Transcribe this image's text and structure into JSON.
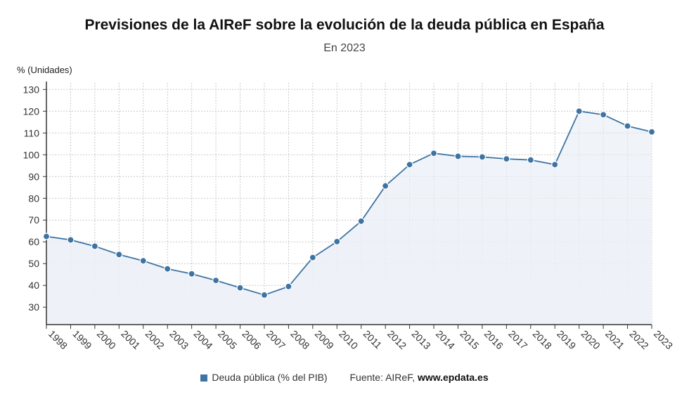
{
  "chart_data": {
    "type": "area",
    "title": "Previsiones de la AIReF sobre la evolución de la deuda pública en España",
    "subtitle": "En 2023",
    "ylabel": "% (Unidades)",
    "xlabel": "",
    "x": [
      "1998",
      "1999",
      "2000",
      "2001",
      "2002",
      "2003",
      "2004",
      "2005",
      "2006",
      "2007",
      "2008",
      "2009",
      "2010",
      "2011",
      "2012",
      "2013",
      "2014",
      "2015",
      "2016",
      "2017",
      "2018",
      "2019",
      "2020",
      "2021",
      "2022",
      "2023"
    ],
    "series": [
      {
        "name": "Deuda pública (% del PIB)",
        "values": [
          62.5,
          60.9,
          58.0,
          54.2,
          51.3,
          47.6,
          45.3,
          42.3,
          38.9,
          35.6,
          39.5,
          52.8,
          60.1,
          69.5,
          85.7,
          95.5,
          100.7,
          99.3,
          99.0,
          98.1,
          97.6,
          95.5,
          120.0,
          118.4,
          113.2,
          110.5
        ]
      }
    ],
    "ylim": [
      22,
      133
    ],
    "yticks": [
      30,
      40,
      50,
      60,
      70,
      80,
      90,
      100,
      110,
      120,
      130
    ],
    "grid": true,
    "legend_position": "bottom"
  },
  "colors": {
    "line": "#3e74a3",
    "marker": "#3e74a3",
    "area_top": "#e6ecf5",
    "area_bottom": "#eef2f8",
    "grid": "#c9c9c9",
    "axis": "#333333"
  },
  "legend": {
    "label": "Deuda pública (% del PIB)",
    "source_prefix": "Fuente: AIReF, ",
    "source_site": "www.epdata.es"
  }
}
